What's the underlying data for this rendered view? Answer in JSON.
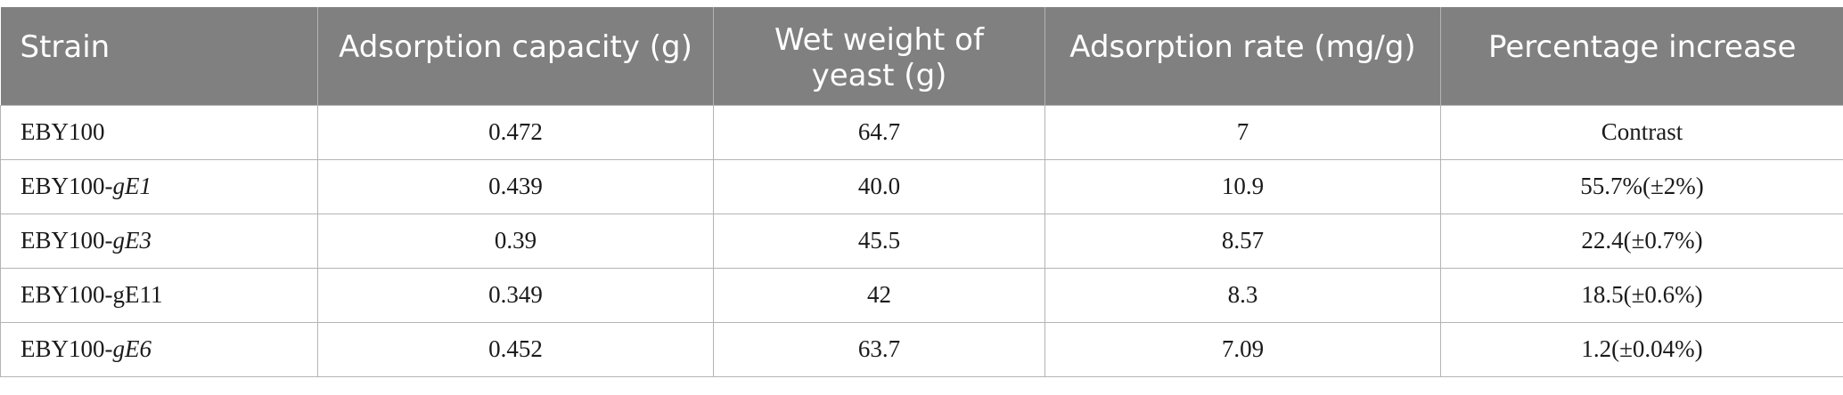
{
  "table": {
    "headers": [
      "Strain",
      "Adsorption capacity (g)",
      "Wet weight of yeast (g)",
      "Adsorption rate (mg/g)",
      "Percentage increase"
    ],
    "rows": [
      {
        "strain_prefix": "EBY100",
        "strain_suffix": "",
        "capacity": "0.472",
        "wet_weight": "64.7",
        "rate": "7",
        "increase": "Contrast"
      },
      {
        "strain_prefix": "EBY100-",
        "strain_suffix": "gE1",
        "capacity": "0.439",
        "wet_weight": "40.0",
        "rate": "10.9",
        "increase": "55.7%(±2%)"
      },
      {
        "strain_prefix": "EBY100-",
        "strain_suffix": "gE3",
        "capacity": "0.39",
        "wet_weight": "45.5",
        "rate": "8.57",
        "increase": "22.4(±0.7%)"
      },
      {
        "strain_prefix": "EBY100-gE11",
        "strain_suffix": "",
        "capacity": "0.349",
        "wet_weight": "42",
        "rate": "8.3",
        "increase": "18.5(±0.6%)"
      },
      {
        "strain_prefix": "EBY100-",
        "strain_suffix": "gE6",
        "capacity": "0.452",
        "wet_weight": "63.7",
        "rate": "7.09",
        "increase": "1.2(±0.04%)"
      }
    ]
  },
  "colors": {
    "header_bg": "#808080",
    "header_text": "#ffffff",
    "grid": "#b4b4b4"
  }
}
